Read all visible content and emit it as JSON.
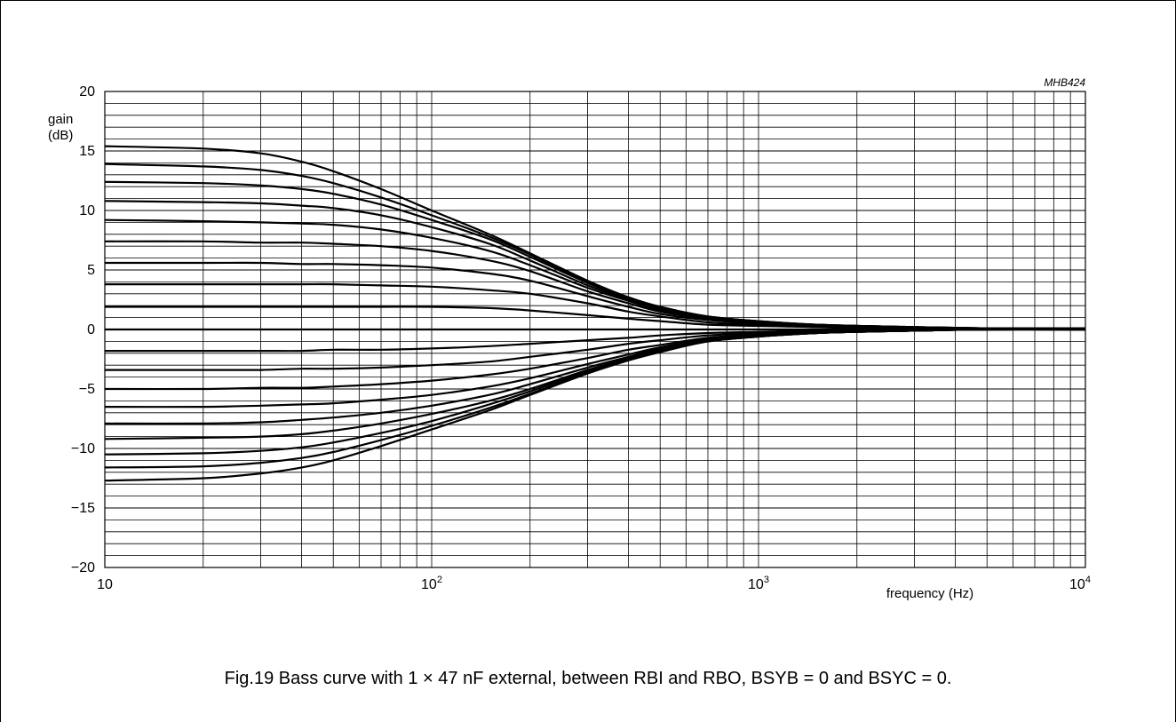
{
  "figure_code": "MHB424",
  "caption": "Fig.19  Bass curve with 1 × 47 nF external, between RBI and RBO, BSYB = 0 and BSYC = 0.",
  "chart_data": {
    "type": "line",
    "title": "",
    "xlabel": "frequency (Hz)",
    "ylabel_line1": "gain",
    "ylabel_line2": "(dB)",
    "x_scale": "log",
    "xlim": [
      10,
      10000
    ],
    "ylim": [
      -20,
      20
    ],
    "grid": true,
    "x_ticks": [
      {
        "value": 10,
        "base": "10",
        "exp": ""
      },
      {
        "value": 100,
        "base": "10",
        "exp": "2"
      },
      {
        "value": 1000,
        "base": "10",
        "exp": "3"
      },
      {
        "value": 10000,
        "base": "10",
        "exp": "4"
      }
    ],
    "y_ticks": [
      {
        "value": 20,
        "label": "20"
      },
      {
        "value": 15,
        "label": "15"
      },
      {
        "value": 10,
        "label": "10"
      },
      {
        "value": 5,
        "label": "5"
      },
      {
        "value": 0,
        "label": "0"
      },
      {
        "value": -5,
        "label": "−5"
      },
      {
        "value": -10,
        "label": "−10"
      },
      {
        "value": -15,
        "label": "−15"
      },
      {
        "value": -20,
        "label": "−20"
      }
    ],
    "x": [
      10,
      20,
      30,
      40,
      50,
      70,
      100,
      150,
      200,
      300,
      400,
      500,
      700,
      1000,
      1500,
      2000,
      3000,
      5000,
      10000
    ],
    "series": [
      {
        "values": [
          15.4,
          15.2,
          14.8,
          14.1,
          13.3,
          11.8,
          10.0,
          8.0,
          6.4,
          4.1,
          2.7,
          1.9,
          1.1,
          0.7,
          0.4,
          0.3,
          0.2,
          0.1,
          0.1
        ]
      },
      {
        "values": [
          13.9,
          13.7,
          13.4,
          12.9,
          12.3,
          11.1,
          9.6,
          7.8,
          6.3,
          4.0,
          2.7,
          1.9,
          1.1,
          0.7,
          0.4,
          0.3,
          0.2,
          0.1,
          0.1
        ]
      },
      {
        "values": [
          12.4,
          12.3,
          12.1,
          11.8,
          11.4,
          10.5,
          9.2,
          7.6,
          6.1,
          3.9,
          2.6,
          1.8,
          1.0,
          0.6,
          0.4,
          0.3,
          0.2,
          0.1,
          0.1
        ]
      },
      {
        "values": [
          10.8,
          10.7,
          10.6,
          10.4,
          10.2,
          9.6,
          8.6,
          7.2,
          5.8,
          3.7,
          2.5,
          1.7,
          1.0,
          0.6,
          0.4,
          0.3,
          0.2,
          0.1,
          0.1
        ]
      },
      {
        "values": [
          9.2,
          9.1,
          9.0,
          8.9,
          8.8,
          8.4,
          7.7,
          6.6,
          5.4,
          3.5,
          2.4,
          1.6,
          0.9,
          0.6,
          0.3,
          0.2,
          0.1,
          0.1,
          0.1
        ]
      },
      {
        "values": [
          7.4,
          7.4,
          7.3,
          7.3,
          7.2,
          7.0,
          6.6,
          5.8,
          4.9,
          3.2,
          2.2,
          1.5,
          0.9,
          0.5,
          0.3,
          0.2,
          0.1,
          0.1,
          0.1
        ]
      },
      {
        "values": [
          5.6,
          5.6,
          5.6,
          5.5,
          5.5,
          5.4,
          5.2,
          4.7,
          4.1,
          2.8,
          1.9,
          1.3,
          0.8,
          0.5,
          0.3,
          0.2,
          0.1,
          0.1,
          0.1
        ]
      },
      {
        "values": [
          3.8,
          3.8,
          3.8,
          3.8,
          3.8,
          3.7,
          3.6,
          3.3,
          3.0,
          2.2,
          1.5,
          1.1,
          0.6,
          0.4,
          0.2,
          0.2,
          0.1,
          0.1,
          0.1
        ]
      },
      {
        "values": [
          1.9,
          1.9,
          1.9,
          1.9,
          1.9,
          1.9,
          1.9,
          1.8,
          1.6,
          1.2,
          0.9,
          0.7,
          0.4,
          0.3,
          0.2,
          0.1,
          0.1,
          0.1,
          0.1
        ]
      },
      {
        "values": [
          0.0,
          0.0,
          0.0,
          0.0,
          0.0,
          0.0,
          0.0,
          0.0,
          0.0,
          0.0,
          0.0,
          0.0,
          0.0,
          0.0,
          0.0,
          0.0,
          0.0,
          0.0,
          0.0
        ]
      },
      {
        "values": [
          -1.8,
          -1.8,
          -1.8,
          -1.8,
          -1.7,
          -1.7,
          -1.6,
          -1.4,
          -1.2,
          -0.9,
          -0.7,
          -0.5,
          -0.3,
          -0.2,
          -0.1,
          -0.1,
          0.0,
          0.0,
          0.0
        ]
      },
      {
        "values": [
          -3.4,
          -3.4,
          -3.4,
          -3.3,
          -3.3,
          -3.2,
          -3.0,
          -2.7,
          -2.3,
          -1.7,
          -1.2,
          -0.9,
          -0.5,
          -0.3,
          -0.2,
          -0.1,
          0.0,
          0.0,
          0.0
        ]
      },
      {
        "values": [
          -5.0,
          -5.0,
          -4.9,
          -4.9,
          -4.8,
          -4.6,
          -4.3,
          -3.8,
          -3.3,
          -2.4,
          -1.7,
          -1.3,
          -0.7,
          -0.4,
          -0.2,
          -0.1,
          0.0,
          0.0,
          0.0
        ]
      },
      {
        "values": [
          -6.5,
          -6.5,
          -6.4,
          -6.3,
          -6.2,
          -5.9,
          -5.5,
          -4.8,
          -4.1,
          -2.9,
          -2.1,
          -1.5,
          -0.8,
          -0.5,
          -0.3,
          -0.2,
          -0.1,
          0.0,
          0.0
        ]
      },
      {
        "values": [
          -7.9,
          -7.9,
          -7.8,
          -7.6,
          -7.4,
          -7.0,
          -6.4,
          -5.5,
          -4.6,
          -3.2,
          -2.3,
          -1.6,
          -0.9,
          -0.5,
          -0.3,
          -0.2,
          -0.1,
          0.0,
          0.0
        ]
      },
      {
        "values": [
          -9.2,
          -9.1,
          -9.0,
          -8.8,
          -8.5,
          -7.9,
          -7.1,
          -6.0,
          -5.0,
          -3.4,
          -2.4,
          -1.7,
          -0.9,
          -0.5,
          -0.3,
          -0.2,
          -0.1,
          0.0,
          0.0
        ]
      },
      {
        "values": [
          -10.5,
          -10.4,
          -10.2,
          -9.9,
          -9.5,
          -8.7,
          -7.7,
          -6.3,
          -5.2,
          -3.5,
          -2.5,
          -1.8,
          -1.0,
          -0.6,
          -0.3,
          -0.2,
          -0.1,
          0.0,
          0.0
        ]
      },
      {
        "values": [
          -11.6,
          -11.5,
          -11.2,
          -10.8,
          -10.3,
          -9.3,
          -8.1,
          -6.6,
          -5.4,
          -3.6,
          -2.5,
          -1.8,
          -1.0,
          -0.6,
          -0.3,
          -0.2,
          -0.1,
          0.0,
          0.0
        ]
      },
      {
        "values": [
          -12.7,
          -12.5,
          -12.1,
          -11.6,
          -11.0,
          -9.8,
          -8.4,
          -6.8,
          -5.5,
          -3.7,
          -2.6,
          -1.9,
          -1.0,
          -0.6,
          -0.3,
          -0.2,
          -0.1,
          0.0,
          0.0
        ]
      }
    ]
  }
}
